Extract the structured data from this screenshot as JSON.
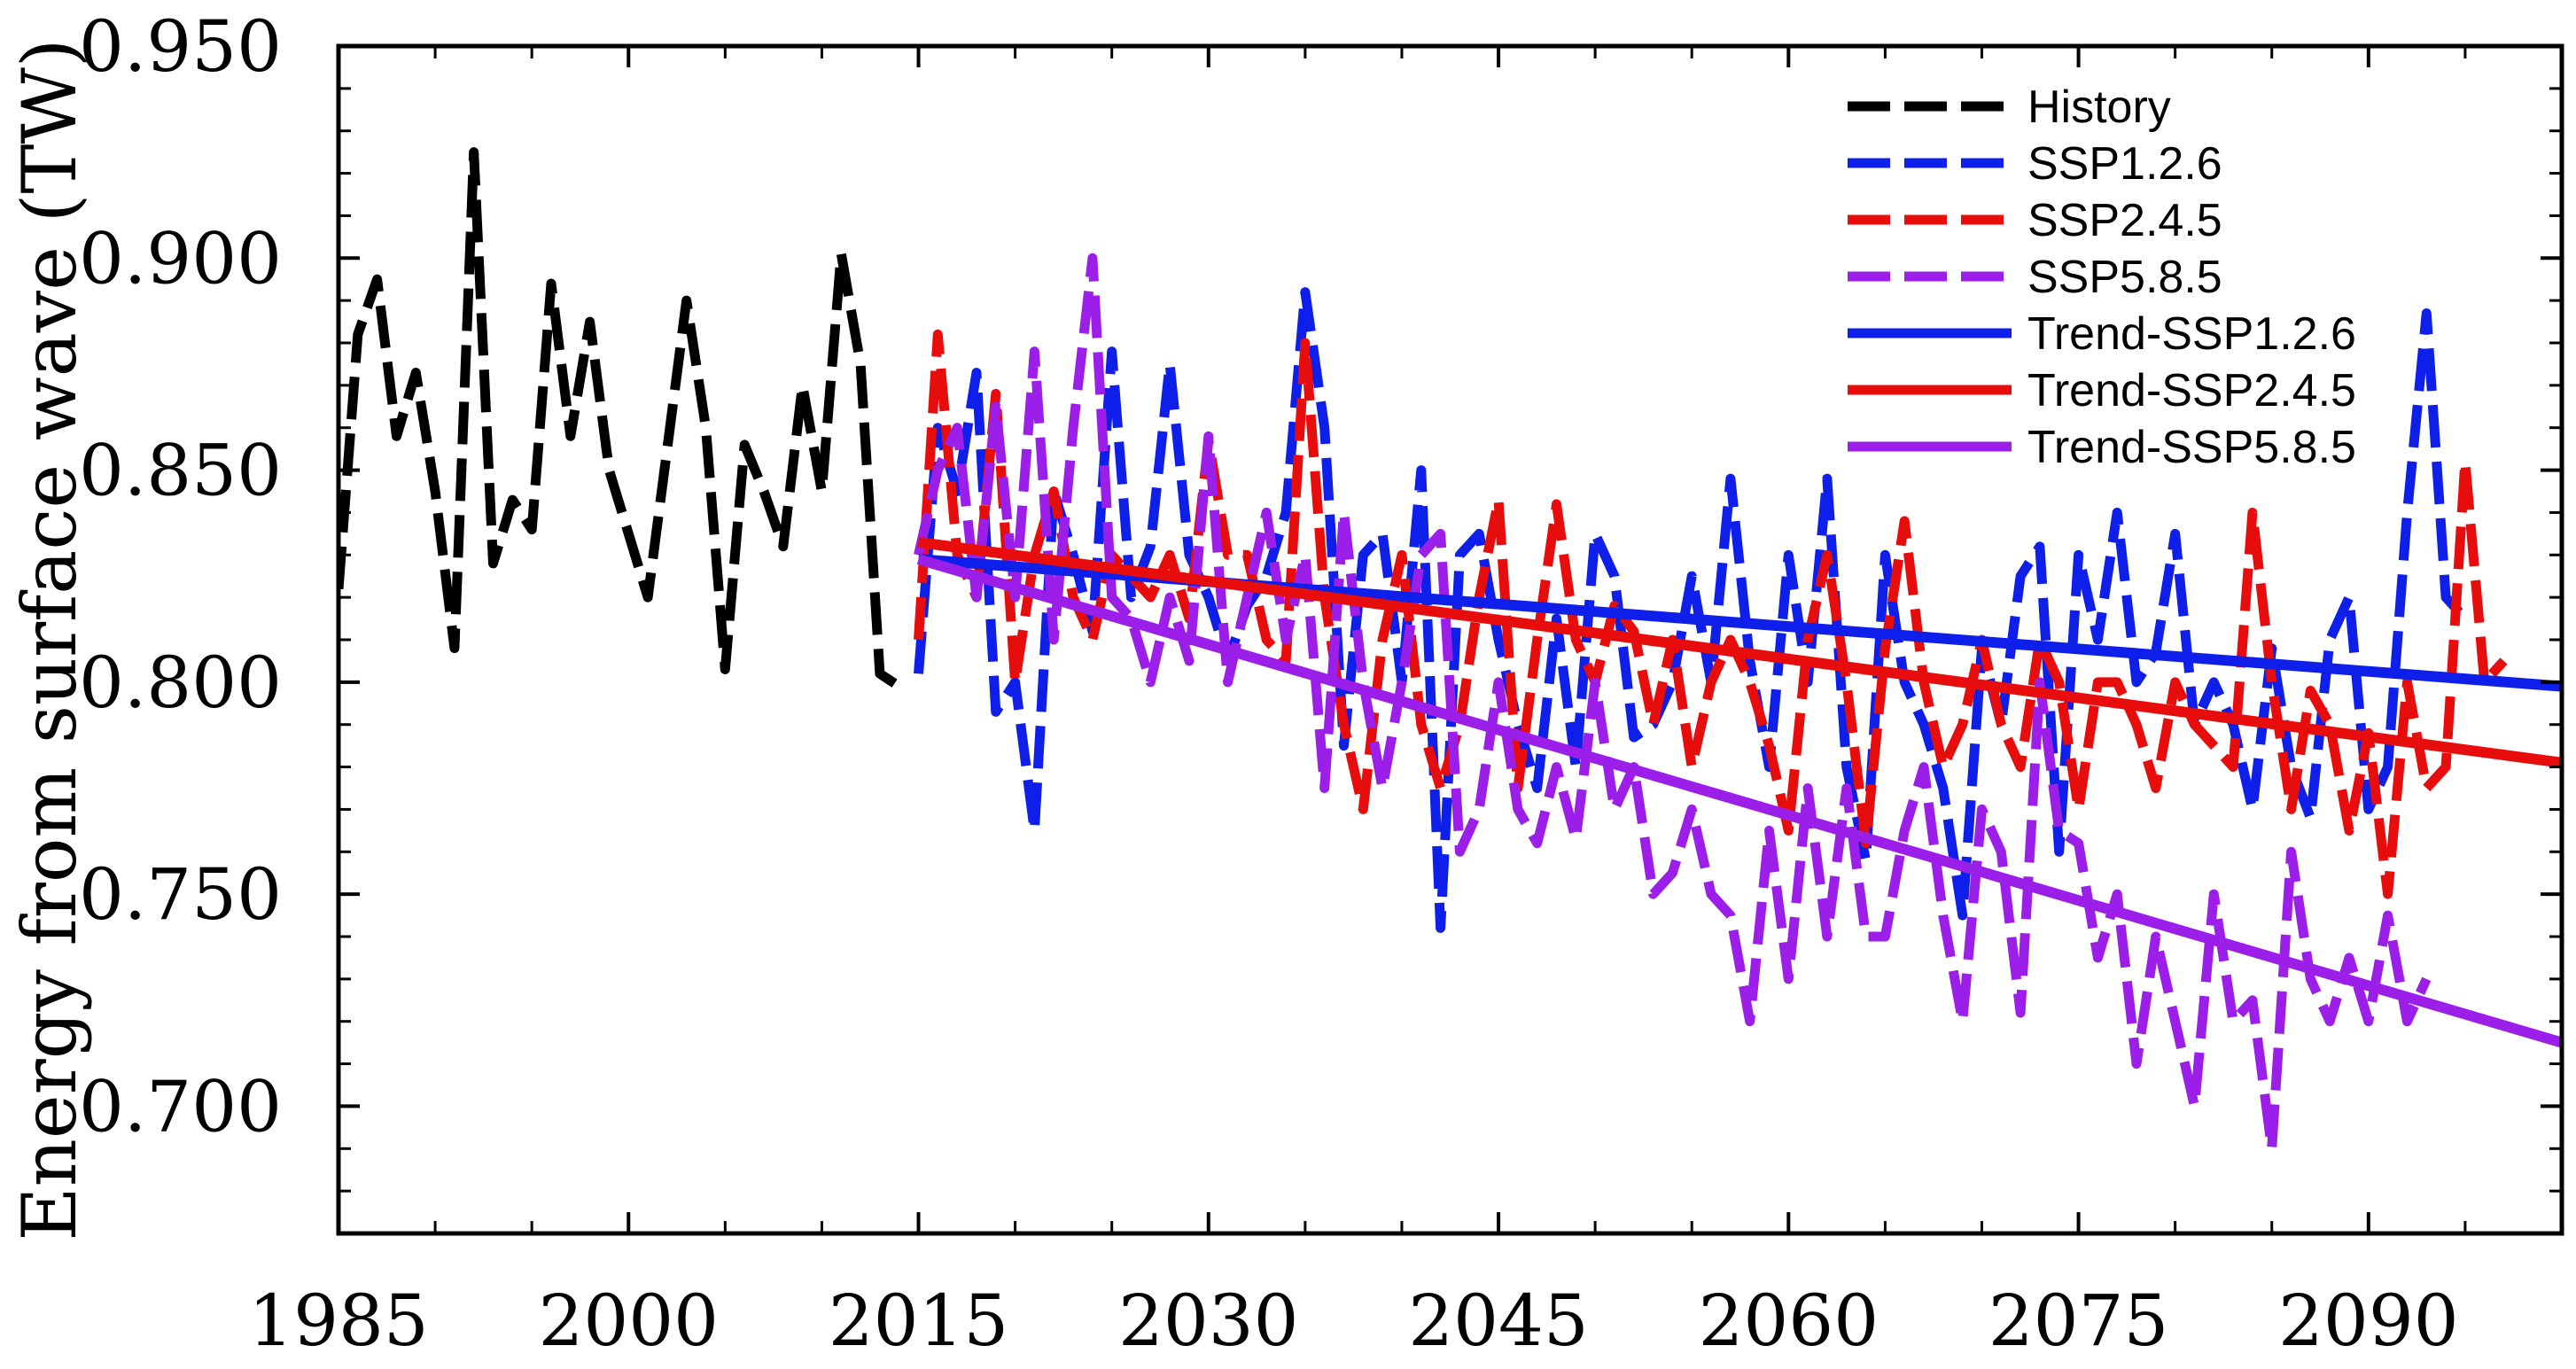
{
  "chart_data": {
    "type": "line",
    "title": "",
    "xlabel": "",
    "ylabel": "Energy from surface wave (TW)",
    "xlim": [
      1985,
      2100
    ],
    "ylim": [
      0.67,
      0.95
    ],
    "x_ticks": [
      "1985",
      "2000",
      "2015",
      "2030",
      "2045",
      "2060",
      "2075",
      "2090"
    ],
    "x_tick_values": [
      1985,
      2000,
      2015,
      2030,
      2045,
      2060,
      2075,
      2090
    ],
    "y_ticks": [
      "0.700",
      "0.750",
      "0.800",
      "0.850",
      "0.900",
      "0.950"
    ],
    "y_tick_values": [
      0.7,
      0.75,
      0.8,
      0.85,
      0.9,
      0.95
    ],
    "grid": false,
    "legend_position": "top-right",
    "series": [
      {
        "name": "History",
        "color": "#000000",
        "style": "dashed",
        "x_start": 1985,
        "values": [
          0.822,
          0.882,
          0.895,
          0.858,
          0.873,
          0.845,
          0.808,
          0.925,
          0.828,
          0.843,
          0.836,
          0.894,
          0.858,
          0.885,
          0.85,
          0.835,
          0.82,
          0.855,
          0.89,
          0.86,
          0.803,
          0.856,
          0.845,
          0.832,
          0.87,
          0.845,
          0.901,
          0.875,
          0.802,
          0.799
        ]
      },
      {
        "name": "SSP1.2.6",
        "color": "#0d1fe8",
        "style": "dashed",
        "x_start": 2015,
        "values": [
          0.802,
          0.86,
          0.845,
          0.873,
          0.793,
          0.8,
          0.765,
          0.845,
          0.83,
          0.812,
          0.878,
          0.82,
          0.832,
          0.875,
          0.83,
          0.82,
          0.805,
          0.818,
          0.825,
          0.84,
          0.892,
          0.86,
          0.785,
          0.83,
          0.835,
          0.8,
          0.85,
          0.742,
          0.83,
          0.835,
          0.81,
          0.79,
          0.775,
          0.815,
          0.78,
          0.835,
          0.825,
          0.787,
          0.79,
          0.8,
          0.825,
          0.8,
          0.848,
          0.805,
          0.78,
          0.83,
          0.8,
          0.848,
          0.78,
          0.758,
          0.83,
          0.8,
          0.79,
          0.775,
          0.745,
          0.808,
          0.79,
          0.825,
          0.832,
          0.76,
          0.83,
          0.81,
          0.84,
          0.8,
          0.807,
          0.835,
          0.79,
          0.8,
          0.79,
          0.77,
          0.808,
          0.78,
          0.768,
          0.81,
          0.82,
          0.77,
          0.78,
          0.84,
          0.887,
          0.82,
          0.815
        ]
      },
      {
        "name": "SSP2.4.5",
        "color": "#e80d0d",
        "style": "dashed",
        "x_start": 2015,
        "values": [
          0.81,
          0.882,
          0.83,
          0.82,
          0.868,
          0.8,
          0.83,
          0.845,
          0.82,
          0.81,
          0.83,
          0.825,
          0.82,
          0.83,
          0.815,
          0.857,
          0.83,
          0.83,
          0.81,
          0.805,
          0.88,
          0.82,
          0.79,
          0.77,
          0.81,
          0.83,
          0.79,
          0.775,
          0.79,
          0.82,
          0.843,
          0.775,
          0.81,
          0.842,
          0.81,
          0.8,
          0.818,
          0.812,
          0.79,
          0.81,
          0.78,
          0.8,
          0.81,
          0.8,
          0.785,
          0.765,
          0.81,
          0.83,
          0.8,
          0.762,
          0.808,
          0.838,
          0.8,
          0.78,
          0.79,
          0.81,
          0.79,
          0.78,
          0.81,
          0.8,
          0.77,
          0.8,
          0.8,
          0.79,
          0.775,
          0.8,
          0.79,
          0.785,
          0.78,
          0.84,
          0.8,
          0.77,
          0.798,
          0.79,
          0.765,
          0.788,
          0.75,
          0.8,
          0.775,
          0.78,
          0.852,
          0.8,
          0.805
        ]
      },
      {
        "name": "SSP5.8.5",
        "color": "#9b1fe8",
        "style": "dashed",
        "x_start": 2015,
        "values": [
          0.83,
          0.85,
          0.86,
          0.82,
          0.865,
          0.82,
          0.878,
          0.81,
          0.86,
          0.9,
          0.82,
          0.815,
          0.8,
          0.82,
          0.805,
          0.858,
          0.8,
          0.82,
          0.84,
          0.81,
          0.83,
          0.775,
          0.84,
          0.8,
          0.775,
          0.8,
          0.83,
          0.835,
          0.76,
          0.77,
          0.8,
          0.77,
          0.762,
          0.78,
          0.763,
          0.8,
          0.77,
          0.78,
          0.75,
          0.755,
          0.77,
          0.75,
          0.745,
          0.72,
          0.765,
          0.73,
          0.775,
          0.74,
          0.775,
          0.74,
          0.74,
          0.765,
          0.78,
          0.745,
          0.72,
          0.77,
          0.76,
          0.722,
          0.8,
          0.765,
          0.762,
          0.735,
          0.75,
          0.71,
          0.74,
          0.72,
          0.7,
          0.75,
          0.72,
          0.725,
          0.69,
          0.76,
          0.73,
          0.72,
          0.735,
          0.72,
          0.745,
          0.72,
          0.73
        ]
      },
      {
        "name": "Trend-SSP1.2.6",
        "color": "#0d1fe8",
        "style": "solid",
        "x": [
          2015,
          2100
        ],
        "values": [
          0.829,
          0.799
        ]
      },
      {
        "name": "Trend-SSP2.4.5",
        "color": "#e80d0d",
        "style": "solid",
        "x": [
          2015,
          2100
        ],
        "values": [
          0.833,
          0.781
        ]
      },
      {
        "name": "Trend-SSP5.8.5",
        "color": "#9b1fe8",
        "style": "solid",
        "x": [
          2015,
          2100
        ],
        "values": [
          0.829,
          0.715
        ]
      }
    ]
  }
}
